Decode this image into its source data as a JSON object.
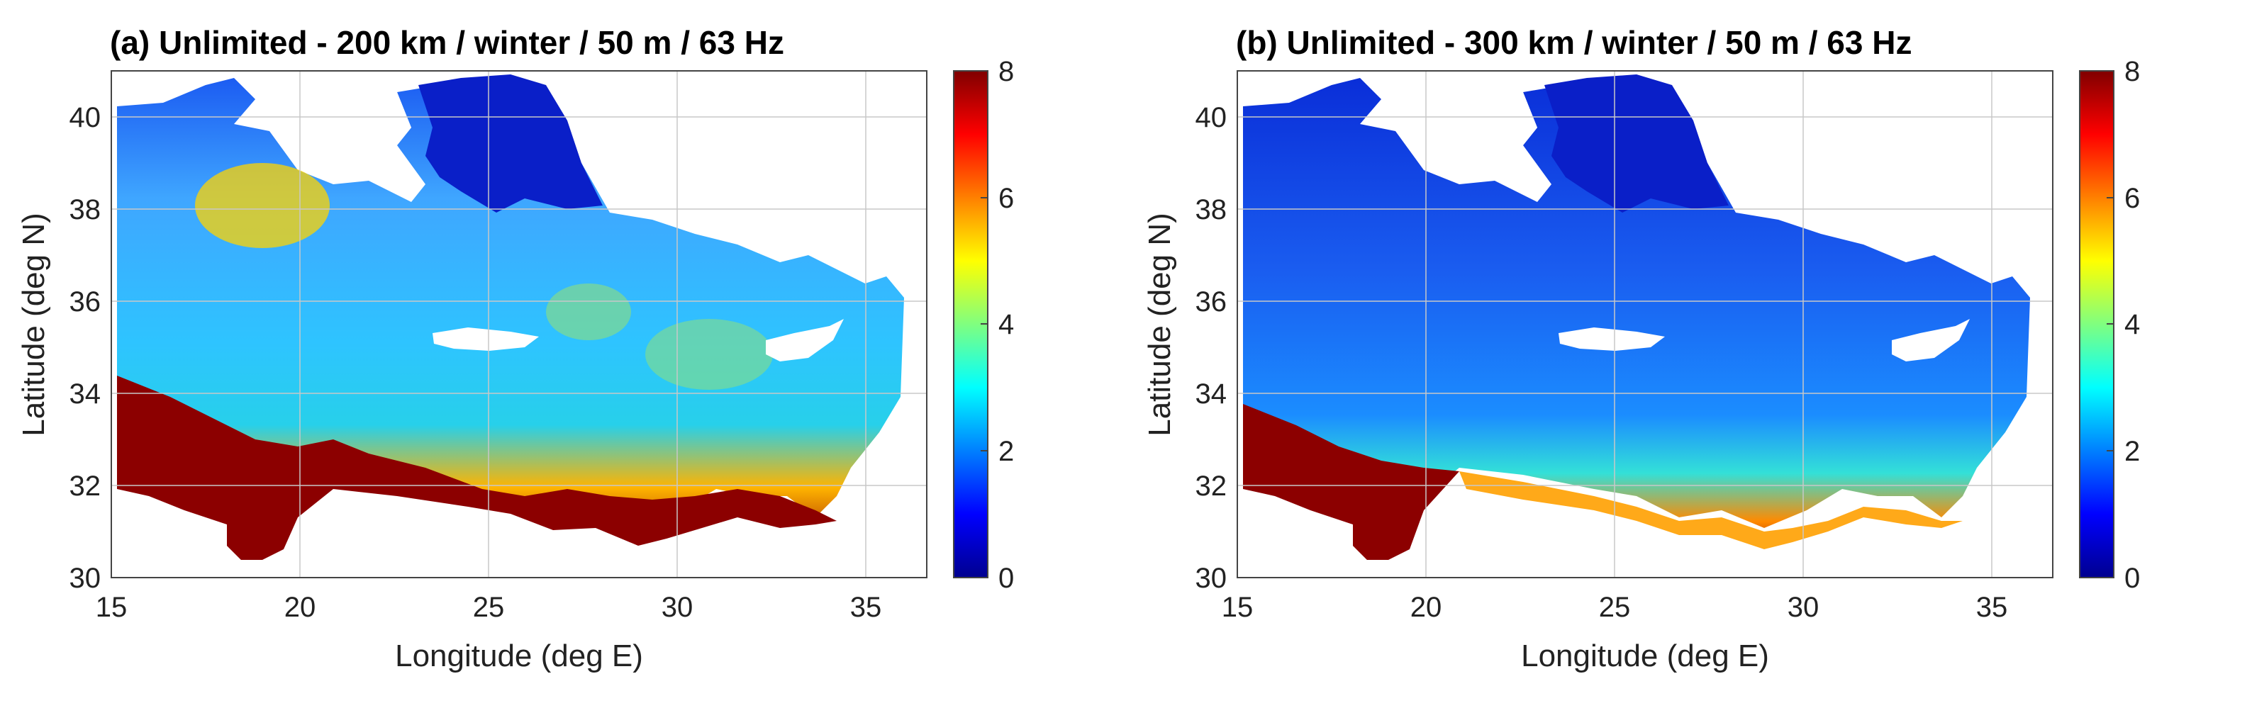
{
  "panels": [
    {
      "title": "(a) Unlimited - 200 km / winter / 50 m / 63 Hz",
      "xlabel": "Longitude (deg E)",
      "ylabel": "Latitude (deg N)",
      "xticks": [
        "15",
        "20",
        "25",
        "30",
        "35"
      ],
      "yticks": [
        "30",
        "32",
        "34",
        "36",
        "38",
        "40"
      ],
      "colorbar_ticks": [
        "0",
        "2",
        "4",
        "6",
        "8"
      ]
    },
    {
      "title": "(b) Unlimited - 300 km / winter / 50 m / 63 Hz",
      "xlabel": "Longitude (deg E)",
      "ylabel": "Latitude (deg N)",
      "xticks": [
        "15",
        "20",
        "25",
        "30",
        "35"
      ],
      "yticks": [
        "30",
        "32",
        "34",
        "36",
        "38",
        "40"
      ],
      "colorbar_ticks": [
        "0",
        "2",
        "4",
        "6",
        "8"
      ]
    }
  ],
  "map": {
    "x_range": [
      15,
      36.5
    ],
    "y_range": [
      30,
      41
    ],
    "colorbar_range": [
      0,
      8
    ],
    "colormap": "jet",
    "grid": true
  },
  "colors": {
    "land": "#ffffff",
    "low": "#00008f",
    "mid": "#0fd2ff",
    "high": "#ffd400",
    "max": "#800000"
  }
}
